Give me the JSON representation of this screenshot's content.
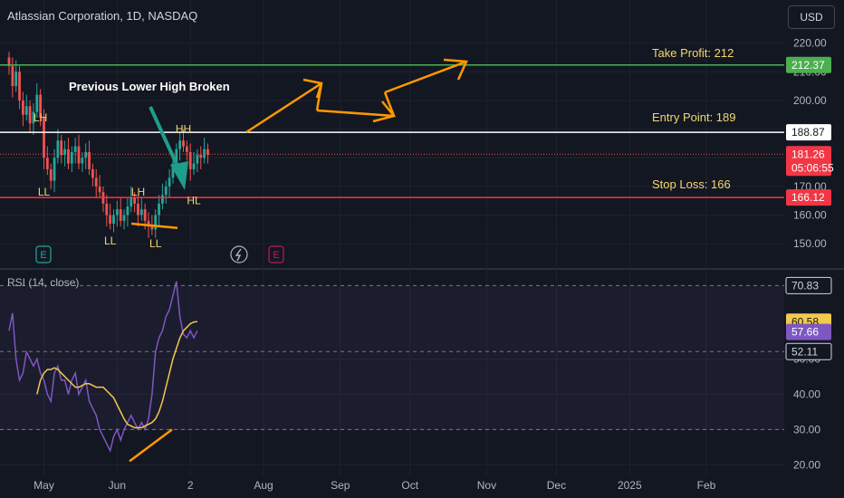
{
  "header": {
    "symbol_title": "Atlassian Corporation, 1D, NASDAQ",
    "currency_button": "USD"
  },
  "rsi_panel": {
    "title": "RSI (14, close)"
  },
  "annotations": {
    "headline": "Previous Lower High Broken",
    "take_profit": "Take Profit: 212",
    "entry_point": "Entry Point: 189",
    "stop_loss": "Stop Loss: 166"
  },
  "colors": {
    "background": "#131722",
    "up": "#26a69a",
    "down": "#ef5350",
    "take_profit_line": "#4caf50",
    "stop_loss_line": "#f23645",
    "entry_line": "#ffffff",
    "label_yellow": "#f5d76e",
    "arrow_orange": "#ff9800",
    "teal_arrow": "#1e9e8a",
    "rsi_line": "#7e57c2",
    "rsi_ma": "#f2c94c"
  },
  "chart_data": [
    {
      "type": "candlestick",
      "title": "Atlassian Corporation, 1D, NASDAQ",
      "ylim": [
        145,
        224
      ],
      "y_ticks": [
        150,
        160,
        170,
        180,
        190,
        200,
        210,
        220
      ],
      "y_tick_labels": [
        "150.00",
        "160.00",
        "170.00",
        "180.00",
        "190.00",
        "200.00",
        "210.00",
        "220.00"
      ],
      "x_ticks": [
        {
          "label": "May",
          "idx": 10
        },
        {
          "label": "Jun",
          "idx": 31
        },
        {
          "label": "2",
          "idx": 52
        },
        {
          "label": "Aug",
          "idx": 73
        },
        {
          "label": "Sep",
          "idx": 95
        },
        {
          "label": "Oct",
          "idx": 115
        },
        {
          "label": "Nov",
          "idx": 137
        },
        {
          "label": "Dec",
          "idx": 157
        },
        {
          "label": "2025",
          "idx": 178
        },
        {
          "label": "Feb",
          "idx": 200
        }
      ],
      "price_labels": [
        {
          "text": "212.37",
          "value": 212.37,
          "color": "#4caf50"
        },
        {
          "text": "188.87",
          "value": 188.87,
          "color": "#ffffff"
        },
        {
          "text": "181.26",
          "value": 181.26,
          "color": "#f23645"
        },
        {
          "text": "05:06:55",
          "value": 178.9,
          "color": "#f23645"
        },
        {
          "text": "166.12",
          "value": 166.12,
          "color": "#f23645"
        }
      ],
      "levels": {
        "take_profit": 212.37,
        "entry": 188.87,
        "stop_loss": 166.12,
        "last": 181.26
      },
      "closes": [
        212,
        205,
        210,
        200,
        195,
        198,
        192,
        196,
        202,
        194,
        180,
        176,
        172,
        180,
        186,
        181,
        183,
        178,
        182,
        184,
        178,
        180,
        182,
        176,
        173,
        170,
        168,
        164,
        160,
        157,
        160,
        162,
        158,
        160,
        163,
        166,
        164,
        160,
        162,
        158,
        156,
        155,
        160,
        164,
        167,
        170,
        173,
        178,
        183,
        186,
        184,
        182,
        176,
        178,
        181,
        180,
        183,
        181
      ],
      "swing_labels": [
        {
          "text": "LH",
          "idx": 9,
          "value": 194
        },
        {
          "text": "LL",
          "idx": 10,
          "value": 168
        },
        {
          "text": "LH",
          "idx": 37,
          "value": 168
        },
        {
          "text": "LL",
          "idx": 29,
          "value": 151
        },
        {
          "text": "LL",
          "idx": 42,
          "value": 150
        },
        {
          "text": "HH",
          "idx": 50,
          "value": 190
        },
        {
          "text": "HL",
          "idx": 53,
          "value": 165
        }
      ]
    },
    {
      "type": "line",
      "title": "RSI (14, close)",
      "ylim": [
        17,
        74
      ],
      "y_ticks": [
        20,
        30,
        40,
        50
      ],
      "y_tick_labels": [
        "20.00",
        "30.00",
        "40.00",
        "50.00"
      ],
      "bands": [
        70.83,
        52.11,
        30
      ],
      "price_labels": [
        {
          "text": "70.83",
          "value": 70.83,
          "color": "#d1d4dc"
        },
        {
          "text": "60.58",
          "value": 60.58,
          "color": "#f2c94c"
        },
        {
          "text": "57.66",
          "value": 57.66,
          "color": "#7e57c2"
        },
        {
          "text": "52.11",
          "value": 52.11,
          "color": "#d1d4dc"
        }
      ],
      "series": [
        {
          "values": [
            58,
            63,
            50,
            44,
            46,
            52,
            50,
            48,
            50,
            46,
            44,
            40,
            38,
            46,
            48,
            44,
            44,
            40,
            44,
            46,
            40,
            42,
            44,
            38,
            36,
            34,
            30,
            28,
            26,
            24,
            28,
            30,
            27,
            30,
            32,
            34,
            32,
            30,
            32,
            30,
            33,
            40,
            52,
            56,
            58,
            62,
            64,
            68,
            72,
            62,
            57,
            56,
            58,
            56,
            58
          ]
        },
        {
          "values": [
            40,
            44,
            46,
            47,
            47,
            47.5,
            47,
            46,
            45,
            44,
            43,
            42,
            42,
            42.5,
            43,
            43,
            42.5,
            42,
            42,
            42,
            41,
            40,
            39,
            37,
            35,
            33,
            31.5,
            31,
            30.5,
            30.5,
            30.5,
            31,
            31.5,
            32,
            33,
            35,
            38,
            42,
            46,
            50,
            53,
            56,
            58,
            59,
            60,
            60.5,
            60.58
          ]
        }
      ]
    }
  ]
}
